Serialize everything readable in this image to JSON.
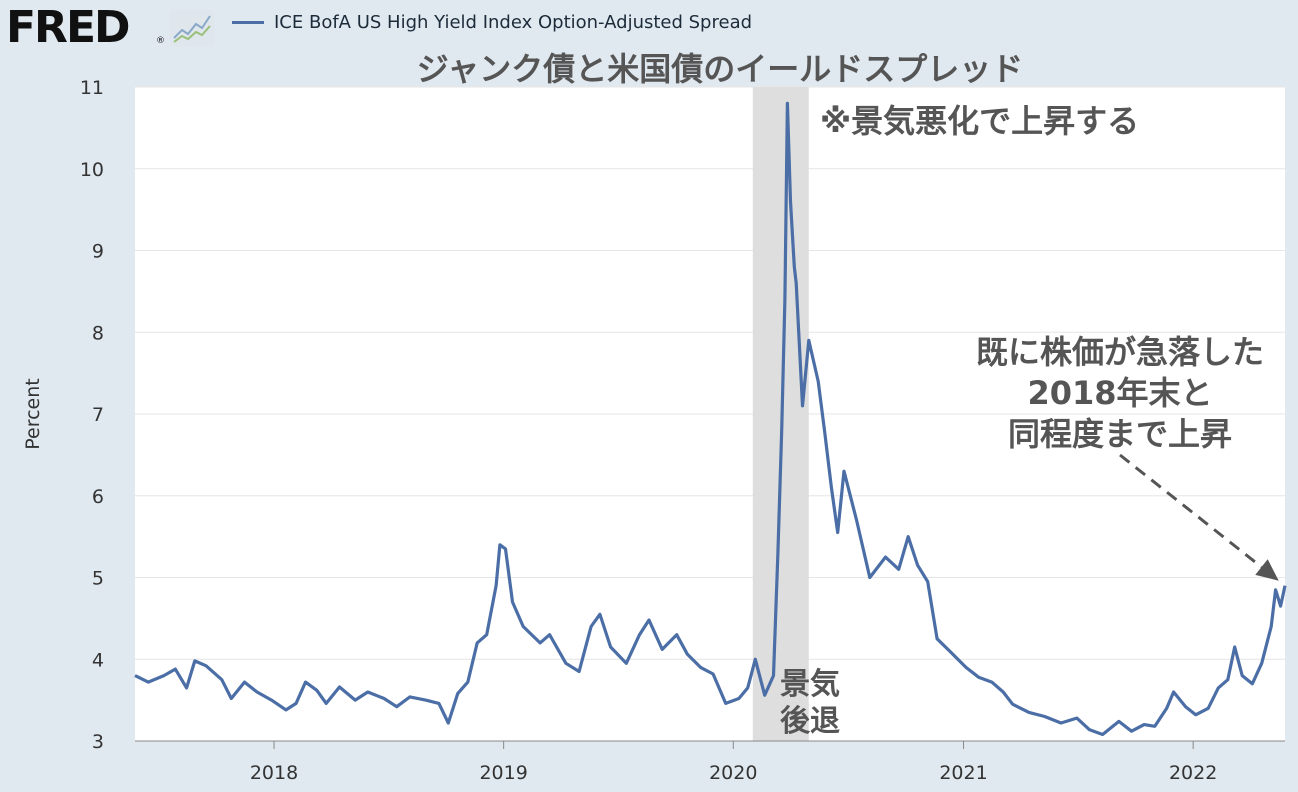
{
  "header": {
    "logo_text": "FRED",
    "logo_mark": "®",
    "logo_icon": "chart-line-icon",
    "legend_label": "ICE BofA US High Yield Index Option-Adjusted Spread"
  },
  "chart_data": {
    "type": "line",
    "title": "ジャンク債と米国債のイールドスプレッド",
    "ylabel": "Percent",
    "xlabel": "",
    "ylim": [
      3,
      11
    ],
    "xlim": [
      "2017-05-25",
      "2022-05-27"
    ],
    "yticks": [
      "3",
      "4",
      "5",
      "6",
      "7",
      "8",
      "9",
      "10",
      "11"
    ],
    "xticks": [
      "2018",
      "2019",
      "2020",
      "2021",
      "2022"
    ],
    "grid": true,
    "recession": {
      "start": "2020-02-01",
      "end": "2020-04-30",
      "label_line1": "景気",
      "label_line2": "後退"
    },
    "series": [
      {
        "name": "ICE BofA US High Yield Index Option-Adjusted Spread",
        "color": "#4b6ea6",
        "x": [
          "2017-05-25",
          "2017-06-15",
          "2017-07-10",
          "2017-07-28",
          "2017-08-15",
          "2017-08-28",
          "2017-09-15",
          "2017-10-10",
          "2017-10-25",
          "2017-11-15",
          "2017-12-05",
          "2017-12-28",
          "2018-01-20",
          "2018-02-05",
          "2018-02-20",
          "2018-03-10",
          "2018-03-25",
          "2018-04-15",
          "2018-05-10",
          "2018-05-30",
          "2018-06-25",
          "2018-07-15",
          "2018-08-05",
          "2018-08-30",
          "2018-09-20",
          "2018-10-05",
          "2018-10-20",
          "2018-11-05",
          "2018-11-20",
          "2018-12-05",
          "2018-12-20",
          "2018-12-26",
          "2019-01-04",
          "2019-01-15",
          "2019-02-01",
          "2019-02-28",
          "2019-03-15",
          "2019-04-10",
          "2019-05-01",
          "2019-05-20",
          "2019-06-03",
          "2019-06-20",
          "2019-07-15",
          "2019-08-05",
          "2019-08-20",
          "2019-09-10",
          "2019-10-03",
          "2019-10-20",
          "2019-11-10",
          "2019-11-30",
          "2019-12-20",
          "2020-01-10",
          "2020-01-24",
          "2020-02-05",
          "2020-02-20",
          "2020-03-05",
          "2020-03-12",
          "2020-03-18",
          "2020-03-23",
          "2020-03-27",
          "2020-04-01",
          "2020-04-07",
          "2020-04-10",
          "2020-04-20",
          "2020-04-30",
          "2020-05-15",
          "2020-05-25",
          "2020-06-05",
          "2020-06-15",
          "2020-06-25",
          "2020-07-15",
          "2020-08-05",
          "2020-08-30",
          "2020-09-20",
          "2020-10-05",
          "2020-10-20",
          "2020-11-05",
          "2020-11-20",
          "2020-12-10",
          "2021-01-05",
          "2021-01-25",
          "2021-02-15",
          "2021-03-05",
          "2021-03-20",
          "2021-04-15",
          "2021-05-10",
          "2021-06-05",
          "2021-06-30",
          "2021-07-20",
          "2021-08-10",
          "2021-09-05",
          "2021-09-25",
          "2021-10-15",
          "2021-11-01",
          "2021-11-20",
          "2021-12-01",
          "2021-12-20",
          "2022-01-05",
          "2022-01-25",
          "2022-02-10",
          "2022-02-25",
          "2022-03-08",
          "2022-03-20",
          "2022-04-05",
          "2022-04-20",
          "2022-05-05",
          "2022-05-12",
          "2022-05-20",
          "2022-05-27"
        ],
        "y": [
          3.8,
          3.72,
          3.8,
          3.88,
          3.65,
          3.98,
          3.92,
          3.75,
          3.52,
          3.72,
          3.6,
          3.5,
          3.38,
          3.46,
          3.72,
          3.62,
          3.46,
          3.66,
          3.5,
          3.6,
          3.52,
          3.42,
          3.54,
          3.5,
          3.46,
          3.22,
          3.58,
          3.72,
          4.2,
          4.3,
          4.9,
          5.4,
          5.35,
          4.7,
          4.4,
          4.2,
          4.3,
          3.95,
          3.85,
          4.4,
          4.55,
          4.15,
          3.95,
          4.3,
          4.48,
          4.12,
          4.3,
          4.06,
          3.9,
          3.82,
          3.46,
          3.52,
          3.65,
          4.0,
          3.56,
          3.8,
          5.3,
          6.8,
          8.4,
          10.8,
          9.6,
          8.8,
          8.6,
          7.1,
          7.9,
          7.4,
          6.8,
          6.1,
          5.55,
          6.3,
          5.7,
          5.0,
          5.25,
          5.1,
          5.5,
          5.15,
          4.95,
          4.25,
          4.1,
          3.9,
          3.78,
          3.72,
          3.6,
          3.45,
          3.35,
          3.3,
          3.22,
          3.28,
          3.14,
          3.08,
          3.24,
          3.12,
          3.2,
          3.18,
          3.4,
          3.6,
          3.42,
          3.32,
          3.4,
          3.65,
          3.75,
          4.15,
          3.8,
          3.7,
          3.95,
          4.4,
          4.85,
          4.65,
          4.9
        ]
      }
    ]
  },
  "annotations": {
    "top": "※景気悪化で上昇する",
    "right_line1": "既に株価が急落した",
    "right_line2": "2018年末と",
    "right_line3": "同程度まで上昇"
  }
}
